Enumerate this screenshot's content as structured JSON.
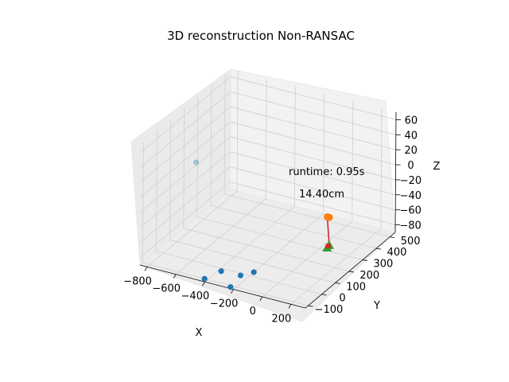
{
  "chart_data": {
    "type": "scatter3d",
    "title": "3D reconstruction Non-RANSAC",
    "xlabel": "X",
    "ylabel": "Y",
    "zlabel": "Z",
    "xlim": [
      -850,
      300
    ],
    "ylim": [
      -120,
      540
    ],
    "zlim": [
      -90,
      70
    ],
    "x_ticks": [
      "−800",
      "−600",
      "−400",
      "−200",
      "0",
      "200"
    ],
    "y_ticks": [
      "−100",
      "0",
      "100",
      "200",
      "300",
      "400",
      "500"
    ],
    "z_ticks": [
      "−80",
      "−60",
      "−40",
      "−20",
      "0",
      "20",
      "40",
      "60"
    ],
    "grid": true,
    "annotations": [
      "runtime: 0.95s",
      "14.40cm"
    ],
    "series": [
      {
        "marker": "circle",
        "color": "#1f77b4",
        "points": [
          {
            "x": -540,
            "y": -40,
            "z": 50
          },
          {
            "x": -420,
            "y": -100,
            "z": -90
          },
          {
            "x": -380,
            "y": -20,
            "z": -90
          },
          {
            "x": -250,
            "y": -15,
            "z": -90
          },
          {
            "x": -200,
            "y": 30,
            "z": -90
          },
          {
            "x": -230,
            "y": -110,
            "z": -90
          }
        ]
      },
      {
        "marker": "circle",
        "color": "#ff7f0e",
        "points": [
          {
            "x": 100,
            "y": 250,
            "z": -35
          },
          {
            "x": 110,
            "y": 255,
            "z": -36
          }
        ]
      },
      {
        "marker": "triangle",
        "color": "#2ca02c",
        "points": [
          {
            "x": 110,
            "y": 255,
            "z": -73
          },
          {
            "x": 100,
            "y": 250,
            "z": -76
          }
        ]
      },
      {
        "marker": "circle",
        "color": "#d62728",
        "points": [
          {
            "x": 105,
            "y": 252,
            "z": -74
          }
        ]
      }
    ],
    "error_line": {
      "color": "#d62728",
      "label": "14.40cm"
    }
  }
}
